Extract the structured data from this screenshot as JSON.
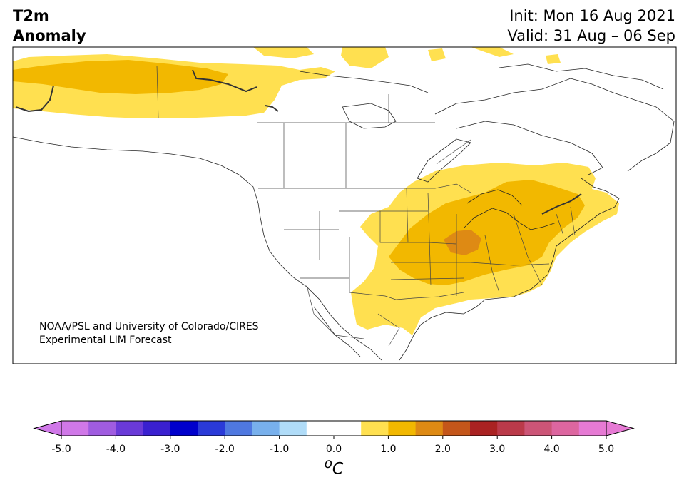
{
  "title": {
    "line1": "T2m",
    "line2": "Anomaly"
  },
  "valid_info": {
    "init": "Init: Mon 16 Aug 2021",
    "valid": "Valid: 31 Aug – 06 Sep"
  },
  "credit": {
    "line1": "NOAA/PSL and University of Colorado/CIRES",
    "line2": "Experimental LIM Forecast"
  },
  "colorbar": {
    "unit_base": "C",
    "unit_sup": "o",
    "ticks": [
      "-5.0",
      "-4.0",
      "-3.0",
      "-2.0",
      "-1.0",
      "0.0",
      "1.0",
      "2.0",
      "3.0",
      "4.0",
      "5.0"
    ],
    "min": -5.0,
    "max": 5.0,
    "step": 0.5,
    "colors": [
      "#d078e8",
      "#a05ce0",
      "#6a3ad8",
      "#3a20d0",
      "#0000cc",
      "#2a3ad8",
      "#4f78e0",
      "#78b0ec",
      "#b0dcf8",
      "#ffffff",
      "#ffffff",
      "#ffe050",
      "#f2b800",
      "#de8a14",
      "#c4561a",
      "#aa2222",
      "#bb3a4a",
      "#cc5577",
      "#dd66a0",
      "#e67ad4"
    ],
    "under_color": "#d078e8",
    "over_color": "#e67ad4"
  },
  "map": {
    "region": "North America",
    "fill_colors": {
      "level_1_0": "#ffe050",
      "level_1_5": "#f2b800",
      "level_2_0": "#de8a14"
    }
  }
}
